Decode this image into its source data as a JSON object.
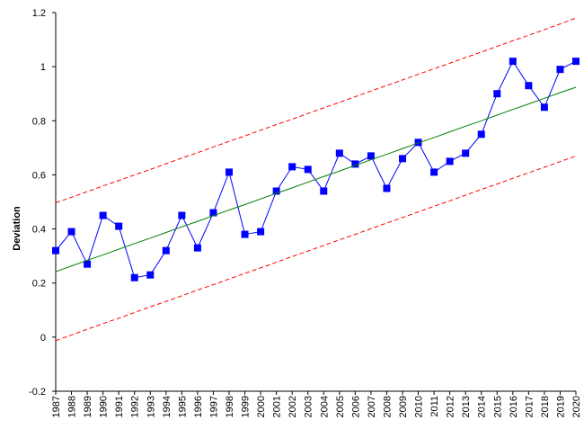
{
  "chart_data": {
    "type": "line",
    "title": "",
    "xlabel": "",
    "ylabel": "Deviation",
    "ylim": [
      -0.2,
      1.2
    ],
    "yticks": [
      -0.2,
      0,
      0.2,
      0.4,
      0.6,
      0.8,
      1,
      1.2
    ],
    "ytick_labels": [
      "-0.2",
      "0",
      "0.2",
      "0.4",
      "0.6",
      "0.8",
      "1",
      "1.2"
    ],
    "grid": false,
    "legend": "none",
    "x": [
      1987,
      1988,
      1989,
      1990,
      1991,
      1992,
      1993,
      1994,
      1995,
      1996,
      1997,
      1998,
      1999,
      2000,
      2001,
      2002,
      2003,
      2004,
      2005,
      2006,
      2007,
      2008,
      2009,
      2010,
      2011,
      2012,
      2013,
      2014,
      2015,
      2016,
      2017,
      2018,
      2019,
      2020
    ],
    "x_labels": [
      "1987",
      "1988",
      "1989",
      "1990",
      "1991",
      "1992",
      "1993",
      "1994",
      "1995",
      "1996",
      "1997",
      "1998",
      "1999",
      "2000",
      "2001",
      "2002",
      "2003",
      "2004",
      "2005",
      "2006",
      "2007",
      "2008",
      "2009",
      "2010",
      "2011",
      "2012",
      "2013",
      "2014",
      "2015",
      "2016",
      "2017",
      "2018",
      "2019",
      "2020"
    ],
    "series": [
      {
        "style": "line-markers",
        "color": "#0000ff",
        "marker_color": "#0000ff",
        "marker": "square",
        "values": [
          0.32,
          0.39,
          0.27,
          0.45,
          0.41,
          0.22,
          0.23,
          0.32,
          0.45,
          0.33,
          0.46,
          0.61,
          0.38,
          0.39,
          0.54,
          0.63,
          0.62,
          0.54,
          0.68,
          0.64,
          0.67,
          0.55,
          0.66,
          0.72,
          0.61,
          0.65,
          0.68,
          0.75,
          0.9,
          1.02,
          0.93,
          0.85,
          0.99,
          1.02
        ]
      },
      {
        "style": "line",
        "color": "#008000",
        "dashed": false,
        "values": [
          0.242,
          0.263,
          0.284,
          0.304,
          0.325,
          0.346,
          0.366,
          0.387,
          0.408,
          0.428,
          0.449,
          0.47,
          0.49,
          0.511,
          0.532,
          0.552,
          0.573,
          0.594,
          0.614,
          0.635,
          0.656,
          0.676,
          0.697,
          0.718,
          0.738,
          0.759,
          0.78,
          0.8,
          0.821,
          0.842,
          0.862,
          0.883,
          0.904,
          0.924
        ]
      },
      {
        "style": "line",
        "color": "#ff0000",
        "dashed": true,
        "values": [
          0.497,
          0.517,
          0.538,
          0.559,
          0.579,
          0.6,
          0.62,
          0.641,
          0.662,
          0.682,
          0.703,
          0.724,
          0.744,
          0.765,
          0.786,
          0.806,
          0.827,
          0.848,
          0.868,
          0.889,
          0.91,
          0.93,
          0.951,
          0.972,
          0.992,
          1.013,
          1.034,
          1.054,
          1.075,
          1.096,
          1.116,
          1.137,
          1.158,
          1.18
        ]
      },
      {
        "style": "line",
        "color": "#ff0000",
        "dashed": true,
        "values": [
          -0.013,
          0.008,
          0.029,
          0.05,
          0.07,
          0.091,
          0.112,
          0.132,
          0.153,
          0.174,
          0.194,
          0.215,
          0.236,
          0.256,
          0.277,
          0.298,
          0.318,
          0.339,
          0.36,
          0.38,
          0.401,
          0.422,
          0.442,
          0.463,
          0.484,
          0.504,
          0.525,
          0.546,
          0.566,
          0.587,
          0.608,
          0.628,
          0.649,
          0.67
        ]
      }
    ]
  }
}
